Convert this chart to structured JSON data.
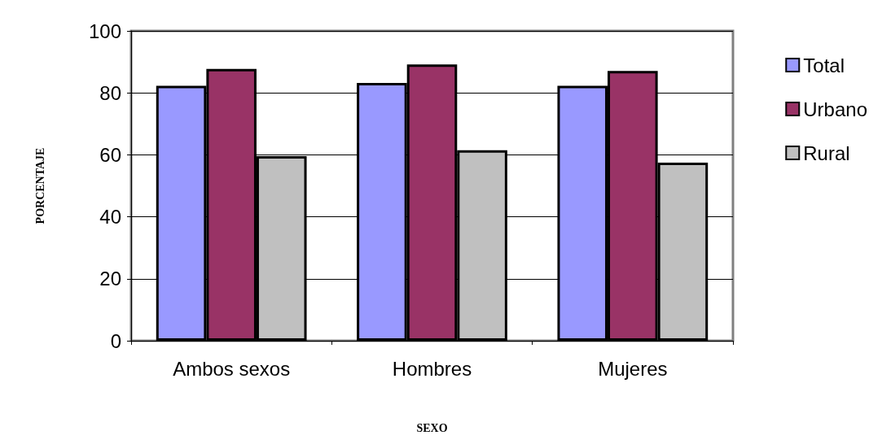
{
  "chart_data": {
    "type": "bar",
    "xlabel": "SEXO",
    "ylabel": "PORCENTAJE",
    "categories": [
      "Ambos sexos",
      "Hombres",
      "Mujeres"
    ],
    "series": [
      {
        "name": "Total",
        "color": "#9999ff",
        "values": [
          82.3,
          83.2,
          82.3
        ]
      },
      {
        "name": "Urbano",
        "color": "#993366",
        "values": [
          87.7,
          89.2,
          87.1
        ]
      },
      {
        "name": "Rural",
        "color": "#c0c0c0",
        "values": [
          59.6,
          61.5,
          57.5
        ]
      }
    ],
    "ylim": [
      0,
      100
    ],
    "yticks": [
      0,
      20,
      40,
      60,
      80,
      100
    ],
    "grid": "y",
    "legend": "right"
  }
}
